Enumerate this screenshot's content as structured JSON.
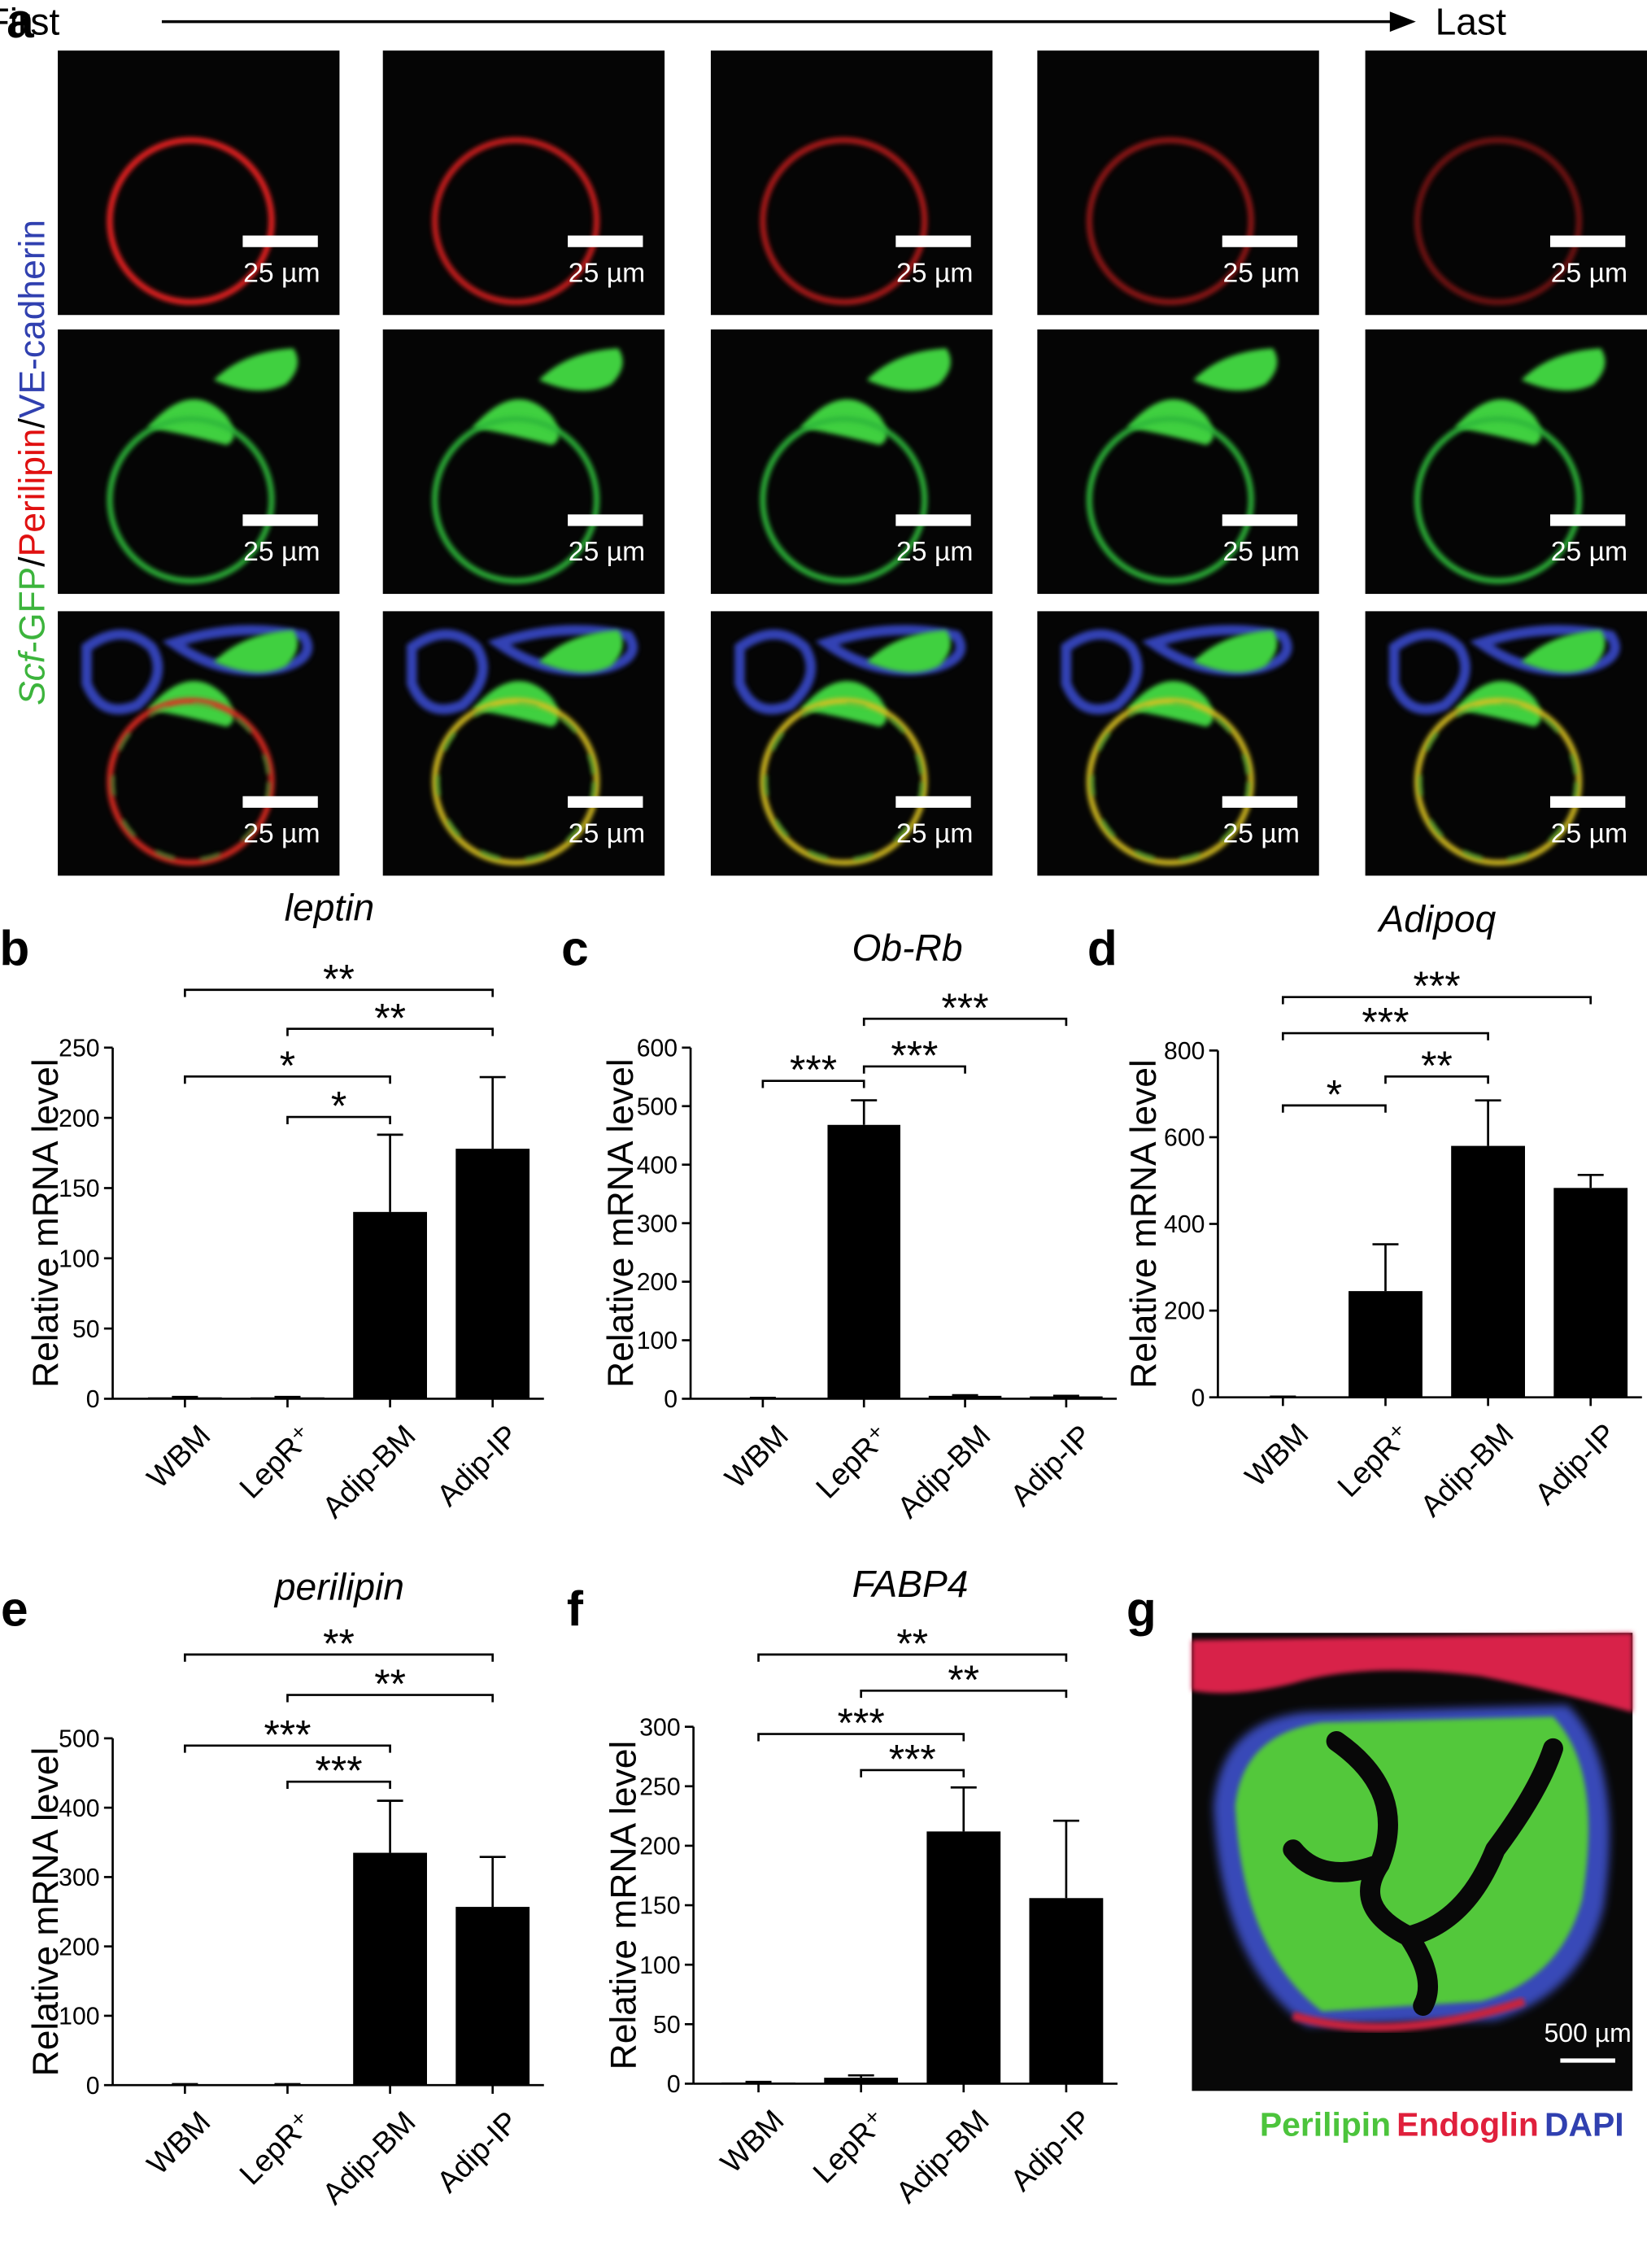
{
  "panel_labels": [
    "a",
    "b",
    "c",
    "d",
    "e",
    "f",
    "g"
  ],
  "panel_a": {
    "start": "First",
    "end": "Last",
    "scale_bar": "25 µm",
    "channel_label": [
      {
        "text": "Scf",
        "color": "#3cb43c"
      },
      {
        "text": "-GFP",
        "color": "#3cb43c"
      },
      {
        "text": "/",
        "color": "#000000"
      },
      {
        "text": "Perilipin",
        "color": "#e01010"
      },
      {
        "text": "/",
        "color": "#000000"
      },
      {
        "text": "VE-cadherin",
        "color": "#3040b0"
      }
    ]
  },
  "chart_data": [
    {
      "type": "bar",
      "title": "leptin",
      "y_label": "Relative mRNA level",
      "color": "#000000",
      "categories": [
        "WBM",
        "LepR⁺",
        "Adip-BM",
        "Adip-IP"
      ],
      "values": [
        1,
        1,
        133,
        178
      ],
      "errors": [
        0.3,
        0.3,
        55,
        51
      ],
      "ylim": [
        0,
        250
      ],
      "yticks": [
        0,
        50,
        100,
        150,
        200,
        250
      ],
      "comparisons": [
        {
          "between": [
            "WBM",
            "Adip-IP"
          ],
          "label": "**"
        },
        {
          "between": [
            "LepR⁺",
            "Adip-IP"
          ],
          "label": "**"
        },
        {
          "between": [
            "WBM",
            "Adip-BM"
          ],
          "label": "*"
        },
        {
          "between": [
            "LepR⁺",
            "Adip-BM"
          ],
          "label": "*"
        }
      ]
    },
    {
      "type": "bar",
      "title": "Ob-Rb",
      "y_label": "Relative mRNA level",
      "color": "#000000",
      "categories": [
        "WBM",
        "LepR⁺",
        "Adip-BM",
        "Adip-IP"
      ],
      "values": [
        1,
        468,
        5,
        4
      ],
      "errors": [
        0.5,
        42,
        1,
        1
      ],
      "ylim": [
        0,
        600
      ],
      "yticks": [
        0,
        100,
        200,
        300,
        400,
        500,
        600
      ],
      "comparisons": [
        {
          "between": [
            "LepR⁺",
            "Adip-IP"
          ],
          "label": "***"
        },
        {
          "between": [
            "LepR⁺",
            "Adip-BM"
          ],
          "label": "***"
        },
        {
          "between": [
            "WBM",
            "LepR⁺"
          ],
          "label": "***"
        }
      ]
    },
    {
      "type": "bar",
      "title": "Adipoq",
      "y_label": "Relative mRNA level",
      "color": "#000000",
      "categories": [
        "WBM",
        "LepR⁺",
        "Adip-BM",
        "Adip-IP"
      ],
      "values": [
        1,
        245,
        580,
        483
      ],
      "errors": [
        0.5,
        108,
        105,
        30
      ],
      "ylim": [
        0,
        800
      ],
      "yticks": [
        0,
        200,
        400,
        600,
        800
      ],
      "comparisons": [
        {
          "between": [
            "WBM",
            "Adip-IP"
          ],
          "label": "***"
        },
        {
          "between": [
            "WBM",
            "Adip-BM"
          ],
          "label": "***"
        },
        {
          "between": [
            "LepR⁺",
            "Adip-BM"
          ],
          "label": "**"
        },
        {
          "between": [
            "WBM",
            "LepR⁺"
          ],
          "label": "*"
        }
      ]
    },
    {
      "type": "bar",
      "title": "perilipin",
      "y_label": "Relative mRNA level",
      "color": "#000000",
      "categories": [
        "WBM",
        "LepR⁺",
        "Adip-BM",
        "Adip-IP"
      ],
      "values": [
        1,
        1,
        335,
        257
      ],
      "errors": [
        0.5,
        0.5,
        75,
        72
      ],
      "ylim": [
        0,
        500
      ],
      "yticks": [
        0,
        100,
        200,
        300,
        400,
        500
      ],
      "comparisons": [
        {
          "between": [
            "WBM",
            "Adip-IP"
          ],
          "label": "**"
        },
        {
          "between": [
            "LepR⁺",
            "Adip-IP"
          ],
          "label": "**"
        },
        {
          "between": [
            "WBM",
            "Adip-BM"
          ],
          "label": "***"
        },
        {
          "between": [
            "LepR⁺",
            "Adip-BM"
          ],
          "label": "***"
        }
      ]
    },
    {
      "type": "bar",
      "title": "FABP4",
      "y_label": "Relative mRNA level",
      "color": "#000000",
      "categories": [
        "WBM",
        "LepR⁺",
        "Adip-BM",
        "Adip-IP"
      ],
      "values": [
        1,
        5,
        212,
        156
      ],
      "errors": [
        0.5,
        2,
        37,
        65
      ],
      "ylim": [
        0,
        300
      ],
      "yticks": [
        0,
        50,
        100,
        150,
        200,
        250,
        300
      ],
      "comparisons": [
        {
          "between": [
            "WBM",
            "Adip-IP"
          ],
          "label": "**"
        },
        {
          "between": [
            "LepR⁺",
            "Adip-IP"
          ],
          "label": "**"
        },
        {
          "between": [
            "WBM",
            "Adip-BM"
          ],
          "label": "***"
        },
        {
          "between": [
            "LepR⁺",
            "Adip-BM"
          ],
          "label": "***"
        }
      ]
    }
  ],
  "panel_g": {
    "scale_bar": "500 µm",
    "legend": [
      {
        "text": "Perilipin",
        "color": "#4cc43c"
      },
      {
        "text": "Endoglin",
        "color": "#e0203c"
      },
      {
        "text": "DAPI",
        "color": "#3040b0"
      }
    ]
  }
}
